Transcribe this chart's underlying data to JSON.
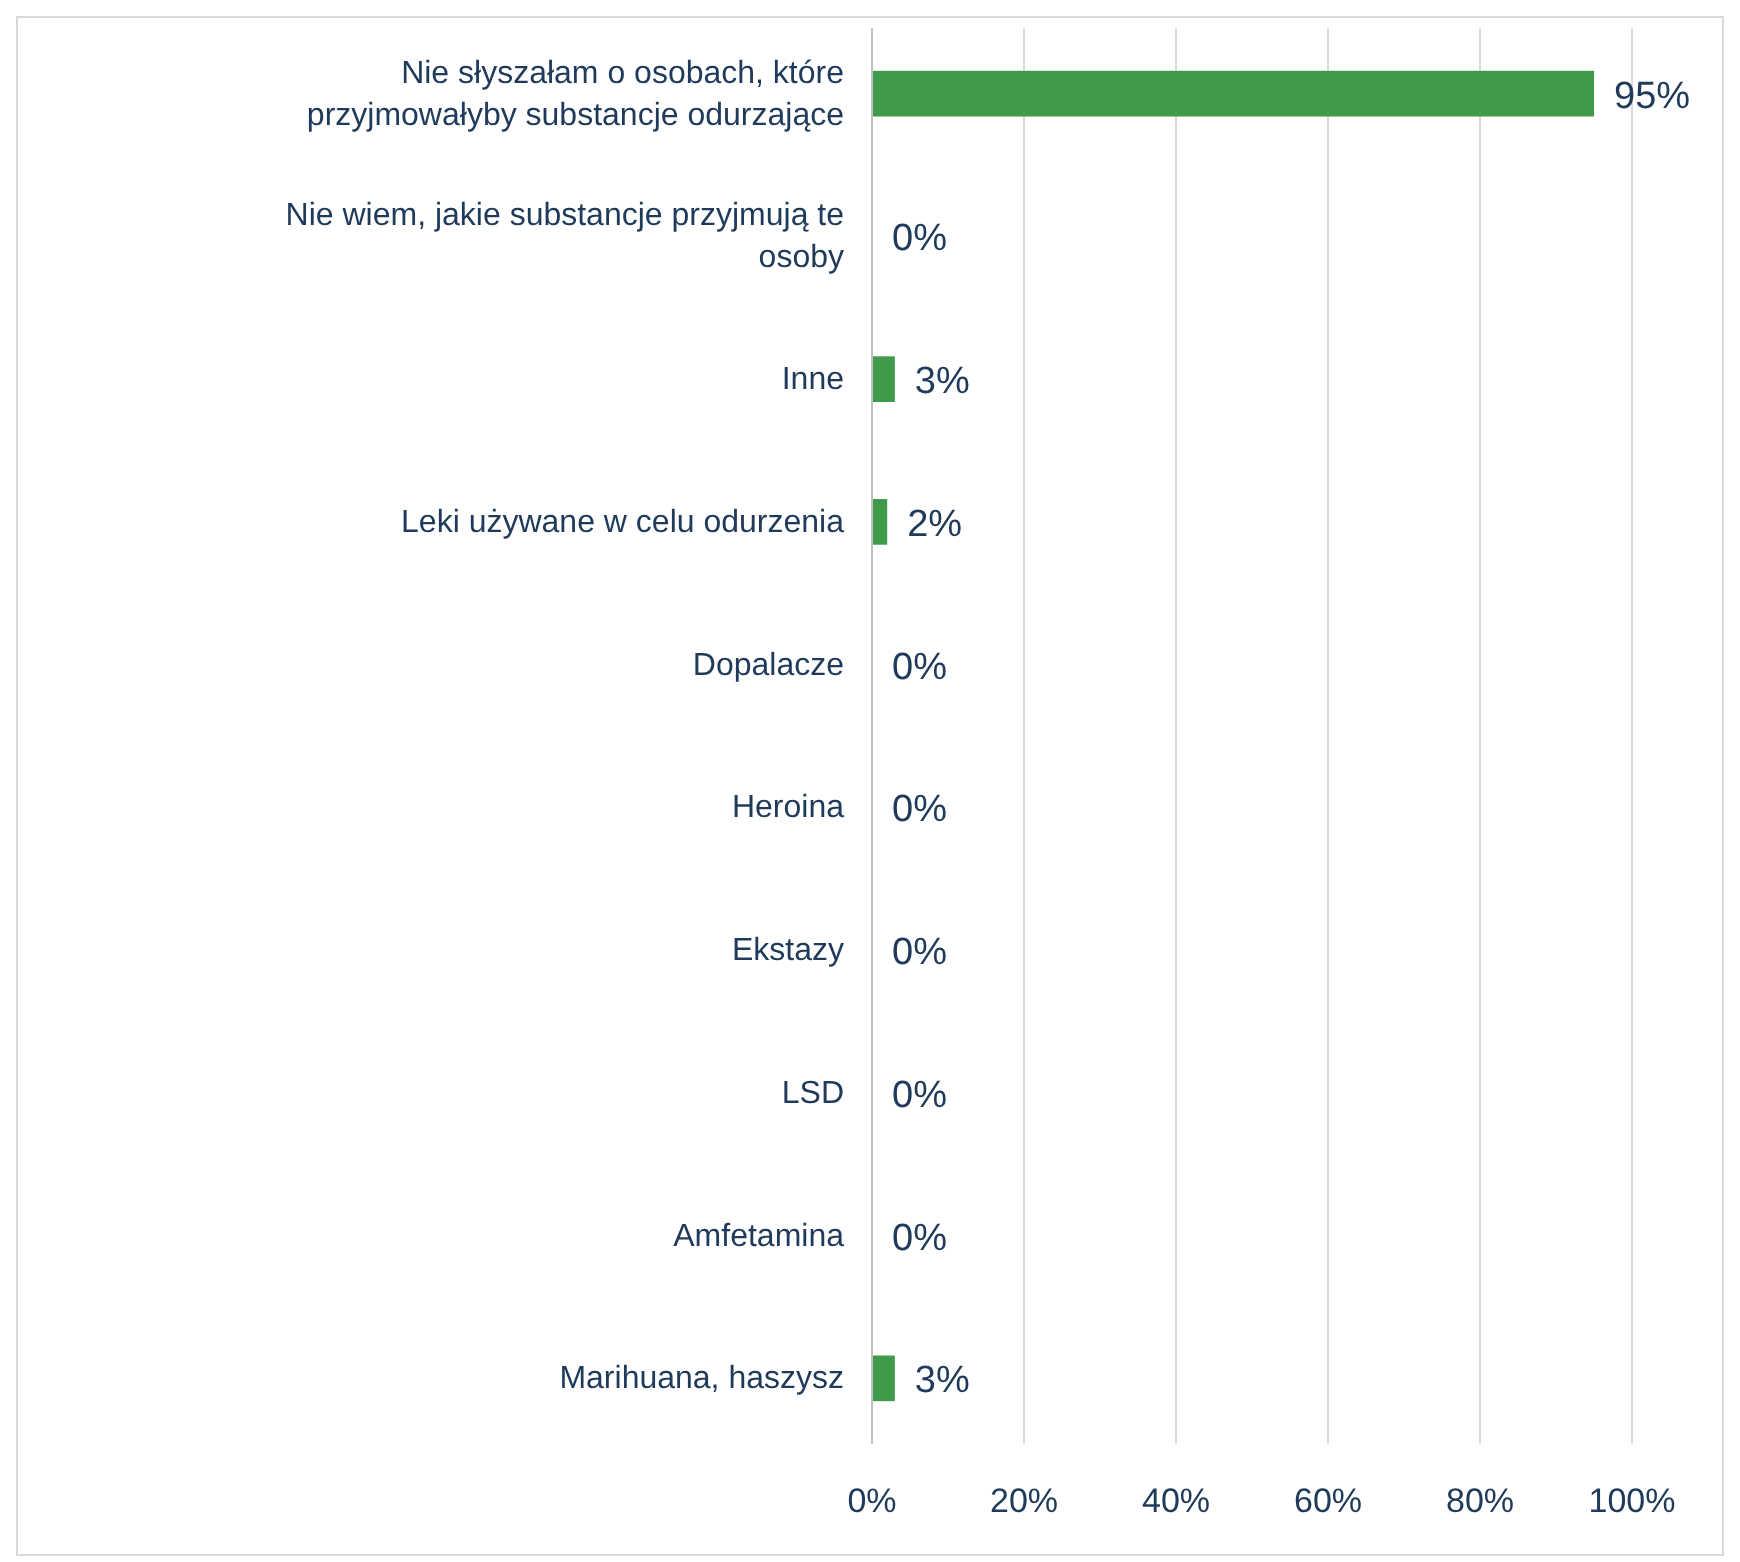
{
  "chart_data": {
    "type": "bar",
    "orientation": "horizontal",
    "categories": [
      "Nie słyszałam o osobach, które przyjmowałyby substancje odurzające",
      "Nie wiem, jakie substancje przyjmują te osoby",
      "Inne",
      "Leki używane w celu odurzenia",
      "Dopalacze",
      "Heroina",
      "Ekstazy",
      "LSD",
      "Amfetamina",
      "Marihuana, haszysz"
    ],
    "values": [
      95,
      0,
      3,
      2,
      0,
      0,
      0,
      0,
      0,
      3
    ],
    "value_labels": [
      "95%",
      "0%",
      "3%",
      "2%",
      "0%",
      "0%",
      "0%",
      "0%",
      "0%",
      "3%"
    ],
    "color": "#3f9a4a",
    "xlim": [
      0,
      100
    ],
    "xticks": [
      {
        "value": 0,
        "label": "0%"
      },
      {
        "value": 20,
        "label": "20%"
      },
      {
        "value": 40,
        "label": "40%"
      },
      {
        "value": 60,
        "label": "60%"
      },
      {
        "value": 80,
        "label": "80%"
      },
      {
        "value": 100,
        "label": "100%"
      }
    ],
    "grid": "x"
  }
}
